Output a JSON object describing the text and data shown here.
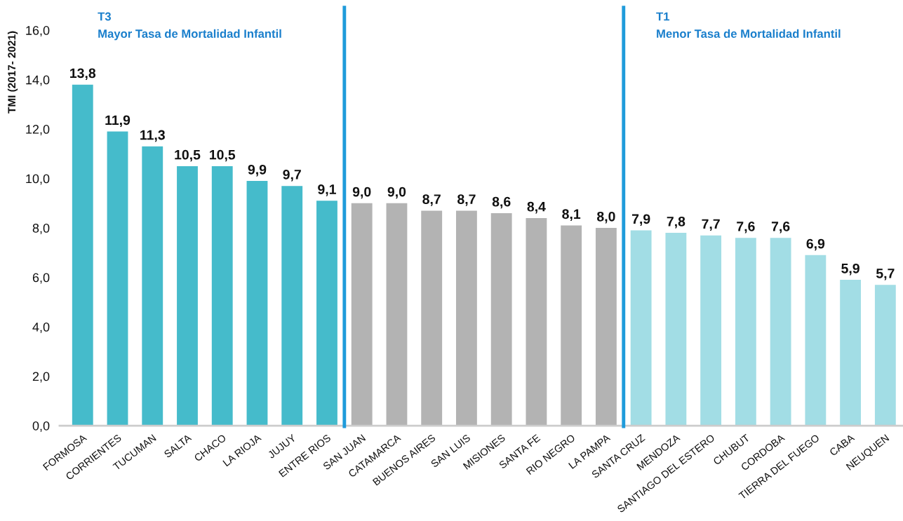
{
  "chart_data": {
    "type": "bar",
    "ylabel": "TMI (2017- 2021)",
    "categories": [
      "FORMOSA",
      "CORRIENTES",
      "TUCUMAN",
      "SALTA",
      "CHACO",
      "LA RIOJA",
      "JUJUY",
      "ENTRE RIOS",
      "SAN JUAN",
      "CATAMARCA",
      "BUENOS AIRES",
      "SAN LUIS",
      "MISIONES",
      "SANTA FE",
      "RIO NEGRO",
      "LA PAMPA",
      "SANTA CRUZ",
      "MENDOZA",
      "SANTIAGO DEL ESTERO",
      "CHUBUT",
      "CORDOBA",
      "TIERRA DEL FUEGO",
      "CABA",
      "NEUQUEN"
    ],
    "values": [
      13.8,
      11.9,
      11.3,
      10.5,
      10.5,
      9.9,
      9.7,
      9.1,
      9.0,
      9.0,
      8.7,
      8.7,
      8.6,
      8.4,
      8.1,
      8.0,
      7.9,
      7.8,
      7.7,
      7.6,
      7.6,
      6.9,
      5.9,
      5.7
    ],
    "value_labels": [
      "13,8",
      "11,9",
      "11,3",
      "10,5",
      "10,5",
      "9,9",
      "9,7",
      "9,1",
      "9,0",
      "9,0",
      "8,7",
      "8,7",
      "8,6",
      "8,4",
      "8,1",
      "8,0",
      "7,9",
      "7,8",
      "7,7",
      "7,6",
      "7,6",
      "6,9",
      "5,9",
      "5,7"
    ],
    "colors": [
      "#45bbcb",
      "#45bbcb",
      "#45bbcb",
      "#45bbcb",
      "#45bbcb",
      "#45bbcb",
      "#45bbcb",
      "#45bbcb",
      "#b3b3b3",
      "#b3b3b3",
      "#b3b3b3",
      "#b3b3b3",
      "#b3b3b3",
      "#b3b3b3",
      "#b3b3b3",
      "#b3b3b3",
      "#a2dde5",
      "#a2dde5",
      "#a2dde5",
      "#a2dde5",
      "#a2dde5",
      "#a2dde5",
      "#a2dde5",
      "#a2dde5"
    ],
    "ylim": [
      0,
      16
    ],
    "yticks": [
      {
        "value": 0,
        "label": "0,0"
      },
      {
        "value": 2,
        "label": "2,0"
      },
      {
        "value": 4,
        "label": "4,0"
      },
      {
        "value": 6,
        "label": "6,0"
      },
      {
        "value": 8,
        "label": "8,0"
      },
      {
        "value": 10,
        "label": "10,0"
      },
      {
        "value": 12,
        "label": "12,0"
      },
      {
        "value": 14,
        "label": "14,0"
      },
      {
        "value": 16,
        "label": "16,0"
      }
    ],
    "annotations": [
      "T3\nMayor Tasa de Mortalidad Infantil",
      "T1\nMenor Tasa de Mortalidad Infantil"
    ],
    "grid": false
  }
}
